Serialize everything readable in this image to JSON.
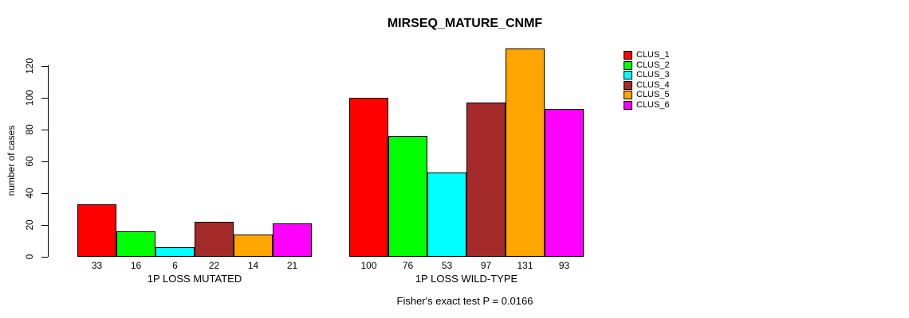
{
  "chart_data": {
    "type": "bar",
    "title": "MIRSEQ_MATURE_CNMF",
    "ylabel": "number of cases",
    "ylim": [
      0,
      131
    ],
    "yticks": [
      0,
      20,
      40,
      60,
      80,
      100,
      120
    ],
    "grid": false,
    "legend_position": "right",
    "categories": [
      "1P LOSS MUTATED",
      "1P LOSS WILD-TYPE"
    ],
    "series": [
      {
        "name": "CLUS_1",
        "color": "#FF0000",
        "values": [
          33,
          100
        ]
      },
      {
        "name": "CLUS_2",
        "color": "#00FF00",
        "values": [
          16,
          76
        ]
      },
      {
        "name": "CLUS_3",
        "color": "#00FFFF",
        "values": [
          6,
          53
        ]
      },
      {
        "name": "CLUS_4",
        "color": "#A52A2A",
        "values": [
          22,
          97
        ]
      },
      {
        "name": "CLUS_5",
        "color": "#FFA500",
        "values": [
          14,
          131
        ]
      },
      {
        "name": "CLUS_6",
        "color": "#FF00FF",
        "values": [
          21,
          93
        ]
      }
    ],
    "bar_value_labels": [
      [
        33,
        16,
        6,
        22,
        14,
        21
      ],
      [
        100,
        76,
        53,
        97,
        131,
        93
      ]
    ],
    "annotation": "Fisher's exact test P = 0.0166"
  }
}
